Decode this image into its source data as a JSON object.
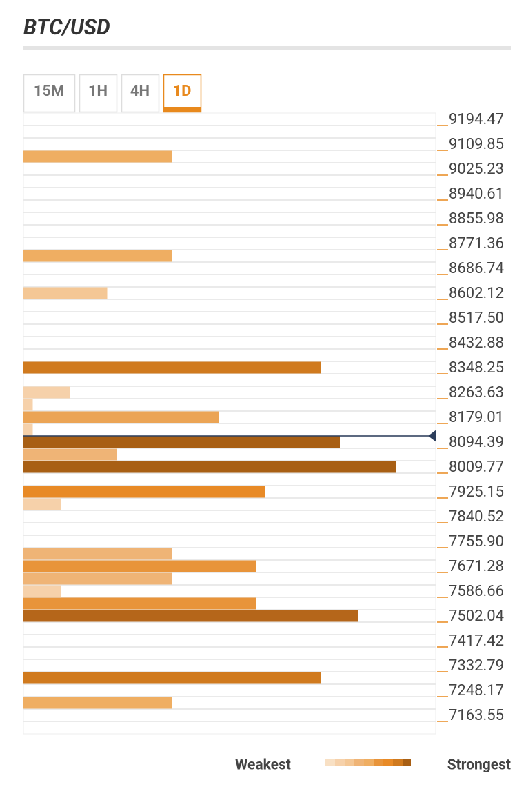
{
  "chart_data": {
    "type": "confluence",
    "title": "BTC/USD",
    "tabs": [
      "15M",
      "1H",
      "4H",
      "1D"
    ],
    "active_tab": "1D",
    "legend": {
      "weakest": "Weakest",
      "strongest": "Strongest"
    },
    "ylim": [
      7121.2,
      9236.8
    ],
    "xlim": [
      0,
      44
    ],
    "yticks": [
      9194.47,
      9109.85,
      9025.23,
      8940.61,
      8855.98,
      8771.36,
      8686.74,
      8602.12,
      {
        "value": 8517.5,
        "label": "8517.50"
      },
      8432.88,
      8348.25,
      8263.63,
      8179.01,
      8094.39,
      8009.77,
      7925.15,
      7840.52,
      {
        "value": 7755.9,
        "label": "7755.90"
      },
      7671.28,
      7586.66,
      7502.04,
      7417.42,
      7332.79,
      7248.17,
      7163.55
    ],
    "current_price": 8136.7,
    "levels": [
      9088.7,
      8750.2,
      8623.3,
      8369.4,
      8284.8,
      8242.5,
      8200.2,
      8157.9,
      8115.5,
      8073.2,
      8030.9,
      7946.3,
      7904.0,
      7734.8,
      7692.4,
      7650.1,
      7607.8,
      7565.5,
      7523.2,
      7311.6,
      7227.0
    ],
    "values": [
      16,
      16,
      9,
      32,
      5,
      1,
      21,
      1,
      34,
      10,
      40,
      26,
      4,
      16,
      25,
      16,
      4,
      25,
      36,
      32,
      16
    ],
    "colors": [
      "#efae62",
      "#efae62",
      "#f4c795",
      "#d07a1e",
      "#f6d1aa",
      "#f6d1aa",
      "#eba455",
      "#f6d1aa",
      "#a85f14",
      "#efb476",
      "#a85f14",
      "#e88a26",
      "#f6d1aa",
      "#efb476",
      "#e8943a",
      "#efb476",
      "#f6d1aa",
      "#e8943a",
      "#b5661a",
      "#d07a1e",
      "#efae62"
    ]
  }
}
